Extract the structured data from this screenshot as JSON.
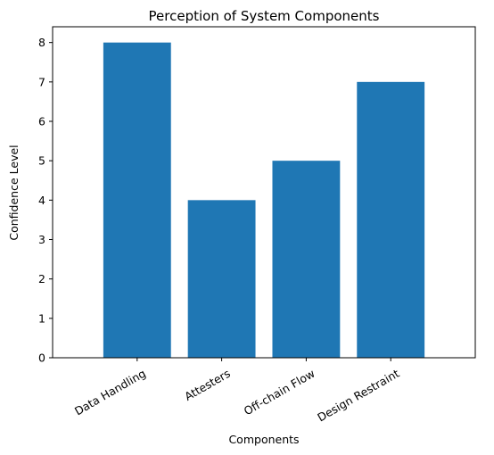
{
  "chart_data": {
    "type": "bar",
    "title": "Perception of System Components",
    "xlabel": "Components",
    "ylabel": "Confidence Level",
    "categories": [
      "Data Handling",
      "Attesters",
      "Off-chain Flow",
      "Design Restraint"
    ],
    "values": [
      8,
      4,
      5,
      7
    ],
    "ylim": [
      0,
      8.4
    ],
    "yticks": [
      0,
      1,
      2,
      3,
      4,
      5,
      6,
      7,
      8
    ],
    "grid": false,
    "legend": "none",
    "x_tick_rotation": 30,
    "bar_color": "#1f77b4"
  }
}
